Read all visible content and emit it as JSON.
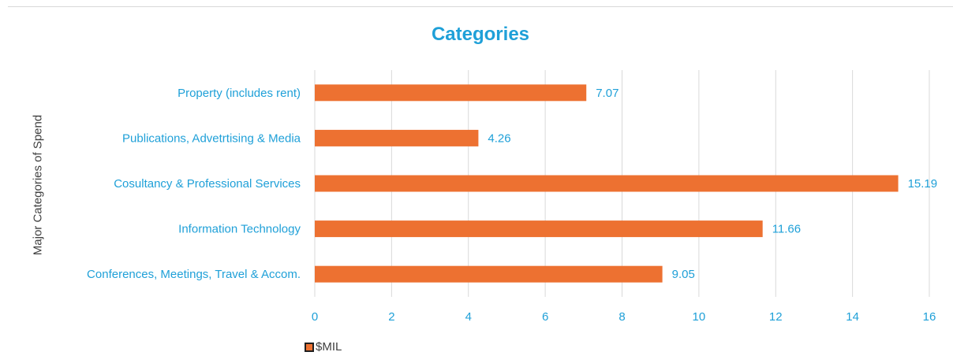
{
  "chart_data": {
    "type": "bar",
    "orientation": "horizontal",
    "title": "Categories",
    "xlabel": "",
    "ylabel": "Major Categories of Spend",
    "categories": [
      "Property (includes rent)",
      "Publications, Advetrtising & Media",
      "Cosultancy & Professional Services",
      "Information Technology",
      "Conferences, Meetings, Travel & Accom."
    ],
    "series": [
      {
        "name": "$MIL",
        "values": [
          7.07,
          4.26,
          15.19,
          11.66,
          9.05
        ],
        "color": "#ed7131"
      }
    ],
    "data_labels": [
      "7.07",
      "4.26",
      "15.19",
      "11.66",
      "9.05"
    ],
    "xlim": [
      0,
      16
    ],
    "xticks": [
      0,
      2,
      4,
      6,
      8,
      10,
      12,
      14,
      16
    ],
    "grid": "vertical",
    "legend_position": "bottom-left"
  },
  "colors": {
    "accent": "#1fa0d8",
    "bar": "#ed7131",
    "grid": "#d9d9d9"
  }
}
